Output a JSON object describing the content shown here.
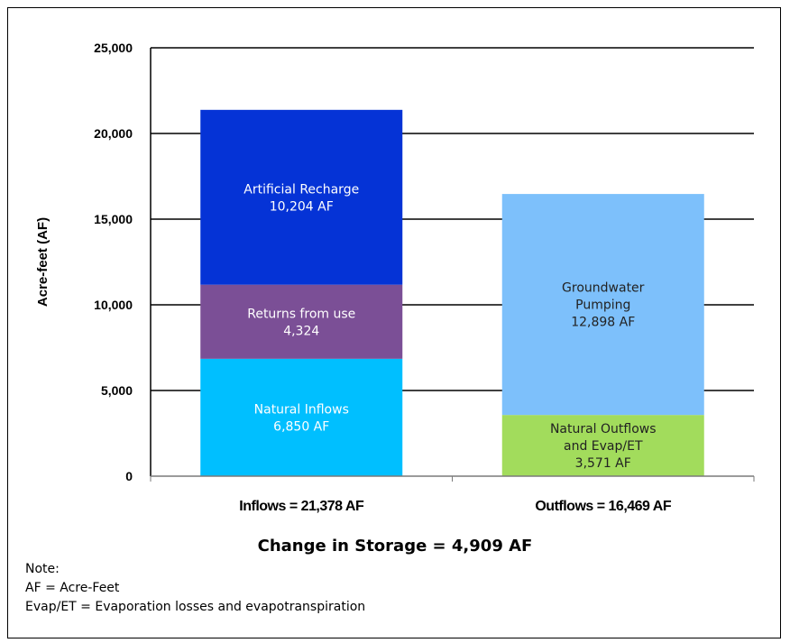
{
  "chart_data": {
    "type": "bar",
    "stacked": true,
    "ylabel": "Acre-feet (AF)",
    "ylim": [
      0,
      25000
    ],
    "yticks": [
      0,
      5000,
      10000,
      15000,
      20000,
      25000
    ],
    "ytick_labels": [
      "0",
      "5,000",
      "10,000",
      "15,000",
      "20,000",
      "25,000"
    ],
    "grid": true,
    "categories": [
      "Inflows = 21,378 AF",
      "Outflows = 16,469 AF"
    ],
    "bars": [
      {
        "category": "Inflows = 21,378 AF",
        "total": 21378,
        "segments": [
          {
            "label": [
              "Natural Inflows",
              "6,850 AF"
            ],
            "value": 6850,
            "color": "#00BFFF",
            "text_color": "#ffffff"
          },
          {
            "label": [
              "Returns from use",
              "4,324"
            ],
            "value": 4324,
            "color": "#7B4F96",
            "text_color": "#ffffff"
          },
          {
            "label": [
              "Artificial Recharge",
              "10,204 AF"
            ],
            "value": 10204,
            "color": "#0533D6",
            "text_color": "#ffffff"
          }
        ]
      },
      {
        "category": "Outflows = 16,469 AF",
        "total": 16469,
        "segments": [
          {
            "label": [
              "Natural Outflows",
              "and Evap/ET",
              "3,571 AF"
            ],
            "value": 3571,
            "color": "#A2DC5C",
            "text_color": "#222222"
          },
          {
            "label": [
              "Groundwater",
              "Pumping",
              "12,898 AF"
            ],
            "value": 12898,
            "color": "#7DC0FB",
            "text_color": "#222222"
          }
        ]
      }
    ]
  },
  "summary": "Change in Storage = 4,909 AF",
  "notes": [
    "Note:",
    "AF = Acre-Feet",
    "Evap/ET = Evaporation losses and evapotranspiration"
  ]
}
